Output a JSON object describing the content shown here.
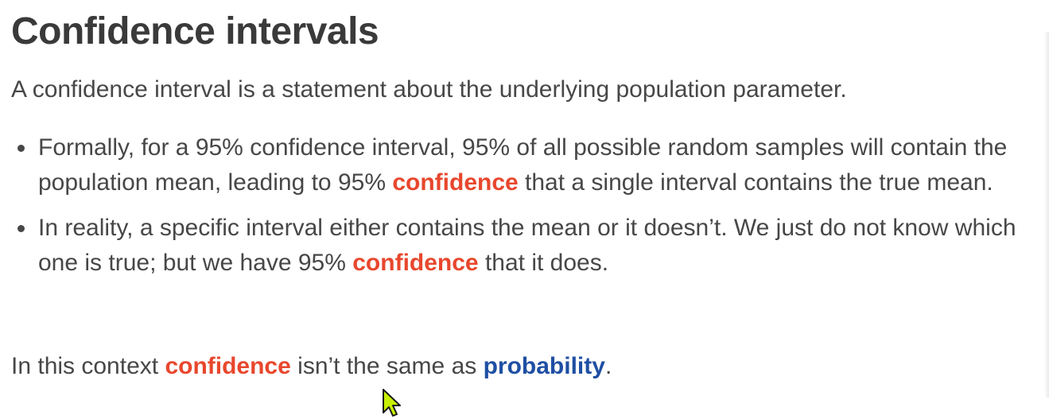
{
  "slide": {
    "title": "Confidence intervals",
    "intro": "A confidence interval is a statement about the underlying population parameter.",
    "bullets": [
      {
        "parts": [
          "Formally, for a 95% confidence interval, 95% of all possible random samples will contain the population mean, leading to 95% ",
          "confidence",
          " that a single interval contains the true mean."
        ]
      },
      {
        "parts": [
          "In reality, a specific interval either contains the mean or it doesn’t. We just do not know which one is true; but we have 95% ",
          "confidence",
          " that it does."
        ]
      }
    ],
    "closing": {
      "prefix": "In this context ",
      "highlight_1": "confidence",
      "middle": " isn’t the same as ",
      "highlight_2": "probability",
      "suffix": "."
    }
  },
  "colors": {
    "highlight_orange": "#e8472d",
    "highlight_blue": "#1f4fa3",
    "text": "#474747",
    "cursor": "#c6f000"
  },
  "icons": {
    "cursor": "mouse-pointer-icon"
  }
}
